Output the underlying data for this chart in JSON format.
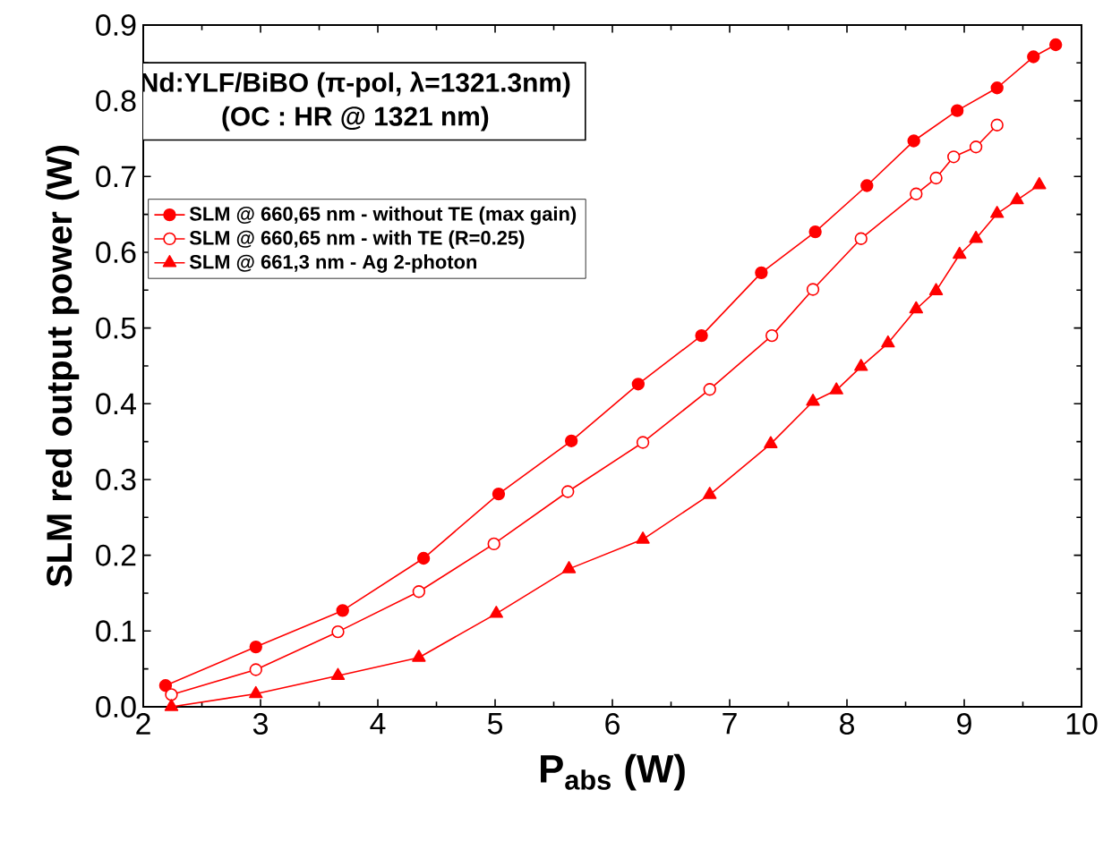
{
  "chart_data": {
    "type": "line",
    "xlabel": "P$_{abs}$ (W)",
    "ylabel": "SLM red output power (W)",
    "annotations": [
      "Nd:YLF/BiBO (π-pol, λ=1321.3nm)",
      "(OC : HR @ 1321 nm)"
    ],
    "xlim": [
      2,
      10
    ],
    "xticks": [
      2,
      3,
      4,
      5,
      6,
      7,
      8,
      9,
      10
    ],
    "ylim": [
      0,
      0.9
    ],
    "yticks": [
      {
        "value": 0,
        "label": "0.0"
      },
      0.1,
      0.2,
      0.3,
      0.4,
      0.5,
      0.6,
      0.7,
      0.8,
      0.9
    ],
    "grid": false,
    "legend": "top left",
    "series": [
      {
        "name": "SLM @ 660,65 nm - without TE (max gain)",
        "color": "#ff0000",
        "marker": "circle",
        "x": [
          2.19,
          2.96,
          3.7,
          4.39,
          5.03,
          5.65,
          6.22,
          6.76,
          7.27,
          7.73,
          8.17,
          8.57,
          8.94,
          9.28,
          9.59,
          9.78
        ],
        "values": [
          0.028,
          0.079,
          0.127,
          0.196,
          0.281,
          0.351,
          0.426,
          0.49,
          0.573,
          0.627,
          0.688,
          0.747,
          0.787,
          0.817,
          0.858,
          0.874
        ]
      },
      {
        "name": "SLM @ 660,65 nm - with TE (R=0.25)",
        "color": "#ff0000",
        "marker": "circle",
        "x": [
          2.24,
          2.96,
          3.66,
          4.35,
          4.99,
          5.62,
          6.26,
          6.83,
          7.36,
          7.71,
          8.12,
          8.59,
          8.76,
          8.91,
          9.1,
          9.28
        ],
        "values": [
          0.016,
          0.049,
          0.099,
          0.152,
          0.215,
          0.284,
          0.349,
          0.419,
          0.49,
          0.551,
          0.618,
          0.677,
          0.698,
          0.726,
          0.739,
          0.768
        ]
      },
      {
        "name": "SLM @ 661,3 nm - Ag 2-photon",
        "color": "#ff0000",
        "marker": "triangle",
        "x": [
          2.24,
          2.96,
          3.66,
          4.35,
          5.01,
          5.63,
          6.26,
          6.83,
          7.35,
          7.71,
          7.91,
          8.12,
          8.35,
          8.59,
          8.76,
          8.96,
          9.1,
          9.28,
          9.45,
          9.64
        ],
        "values": [
          0.0,
          0.017,
          0.041,
          0.065,
          0.123,
          0.182,
          0.221,
          0.28,
          0.347,
          0.403,
          0.418,
          0.449,
          0.48,
          0.525,
          0.549,
          0.597,
          0.618,
          0.651,
          0.669,
          0.689
        ]
      }
    ]
  }
}
